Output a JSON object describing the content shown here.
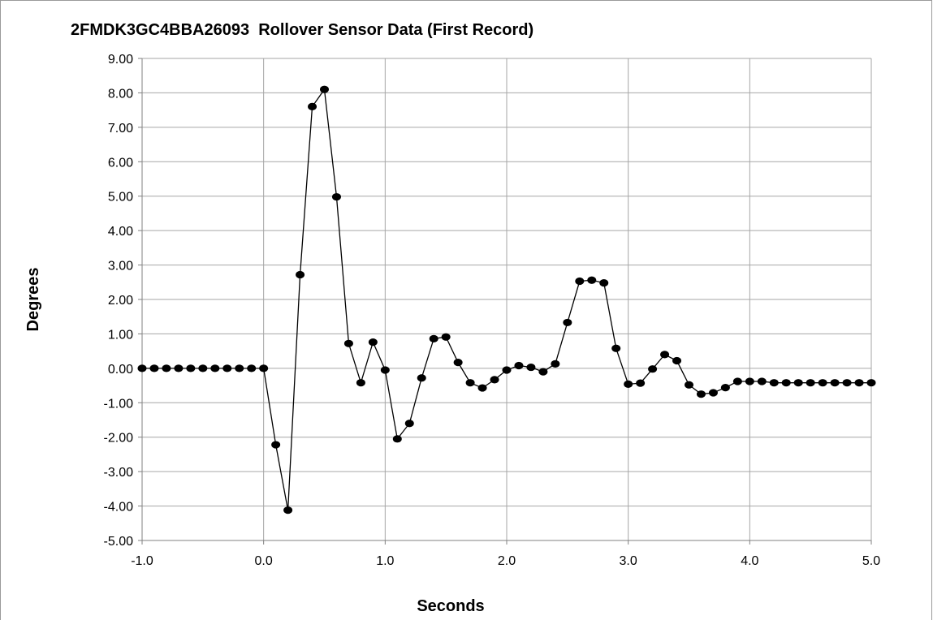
{
  "chart_data": {
    "type": "line",
    "title": "2FMDK3GC4BBA26093  Rollover Sensor Data (First Record)",
    "xlabel": "Seconds",
    "ylabel": "Degrees",
    "xlim": [
      -1.0,
      5.0
    ],
    "ylim": [
      -5.0,
      9.0
    ],
    "x_ticks": [
      -1.0,
      0.0,
      1.0,
      2.0,
      3.0,
      4.0,
      5.0
    ],
    "x_tick_labels": [
      "-1.0",
      "0.0",
      "1.0",
      "2.0",
      "3.0",
      "4.0",
      "5.0"
    ],
    "y_ticks": [
      -5,
      -4,
      -3,
      -2,
      -1,
      0,
      1,
      2,
      3,
      4,
      5,
      6,
      7,
      8,
      9
    ],
    "y_tick_labels": [
      "-5.00",
      "-4.00",
      "-3.00",
      "-2.00",
      "-1.00",
      "0.00",
      "1.00",
      "2.00",
      "3.00",
      "4.00",
      "5.00",
      "6.00",
      "7.00",
      "8.00",
      "9.00"
    ],
    "grid": true,
    "legend": "none",
    "series": [
      {
        "color": "#000000",
        "marker": "circle",
        "x": [
          -1.0,
          -0.9,
          -0.8,
          -0.7,
          -0.6,
          -0.5,
          -0.4,
          -0.3,
          -0.2,
          -0.1,
          0.0,
          0.1,
          0.2,
          0.3,
          0.4,
          0.5,
          0.6,
          0.7,
          0.8,
          0.9,
          1.0,
          1.1,
          1.2,
          1.3,
          1.4,
          1.5,
          1.6,
          1.7,
          1.8,
          1.9,
          2.0,
          2.1,
          2.2,
          2.3,
          2.4,
          2.5,
          2.6,
          2.7,
          2.8,
          2.9,
          3.0,
          3.1,
          3.2,
          3.3,
          3.4,
          3.5,
          3.6,
          3.7,
          3.8,
          3.9,
          4.0,
          4.1,
          4.2,
          4.3,
          4.4,
          4.5,
          4.6,
          4.7,
          4.8,
          4.9,
          5.0
        ],
        "y": [
          0.0,
          0.0,
          0.0,
          0.0,
          0.0,
          0.0,
          0.0,
          0.0,
          0.0,
          0.0,
          0.0,
          -2.22,
          -4.12,
          2.72,
          7.6,
          8.1,
          4.98,
          0.72,
          -0.42,
          0.76,
          -0.05,
          -2.05,
          -1.6,
          -0.28,
          0.86,
          0.91,
          0.17,
          -0.42,
          -0.57,
          -0.33,
          -0.05,
          0.08,
          0.03,
          -0.1,
          0.13,
          1.33,
          2.53,
          2.56,
          2.48,
          0.58,
          -0.46,
          -0.43,
          -0.02,
          0.4,
          0.22,
          -0.48,
          -0.75,
          -0.71,
          -0.56,
          -0.38,
          -0.38,
          -0.38,
          -0.42,
          -0.42,
          -0.42,
          -0.42,
          -0.42,
          -0.42,
          -0.42,
          -0.42,
          -0.42
        ]
      }
    ]
  }
}
